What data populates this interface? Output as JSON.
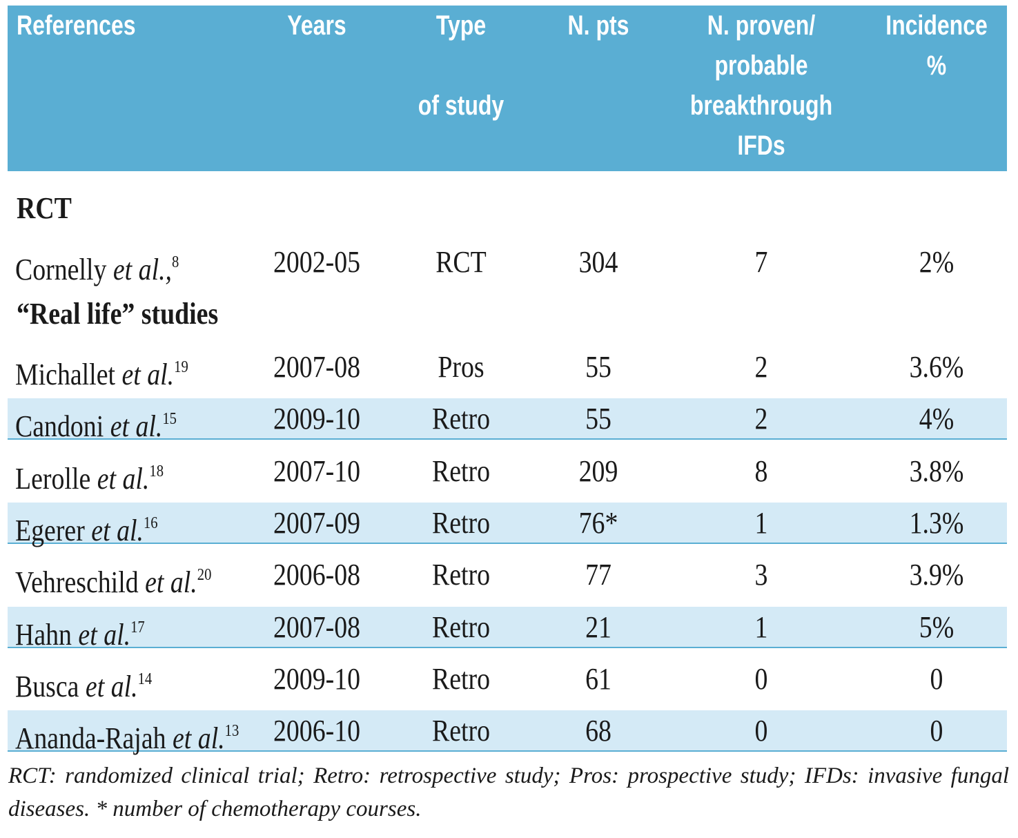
{
  "table": {
    "header": [
      [
        "References"
      ],
      [
        "Years"
      ],
      [
        "Type",
        "of study"
      ],
      [
        "N. pts"
      ],
      [
        "N. proven/",
        "probable",
        "breakthrough",
        "IFDs"
      ],
      [
        "Incidence",
        "%"
      ]
    ],
    "sections": [
      {
        "title": "RCT",
        "rows": [
          {
            "author": "Cornelly",
            "etal": "et al.,",
            "ref": "8",
            "years": "2002-05",
            "type": "RCT",
            "pts": "304",
            "ifds": "7",
            "incidence": "2%"
          }
        ]
      },
      {
        "title": "“Real life” studies",
        "rows": [
          {
            "author": "Michallet",
            "etal": "et al.",
            "ref": "19",
            "years": "2007-08",
            "type": "Pros",
            "pts": "55",
            "ifds": "2",
            "incidence": "3.6%"
          },
          {
            "author": "Candoni",
            "etal": "et al.",
            "ref": "15",
            "years": "2009-10",
            "type": "Retro",
            "pts": "55",
            "ifds": "2",
            "incidence": "4%"
          },
          {
            "author": "Lerolle",
            "etal": "et al.",
            "ref": "18",
            "years": "2007-10",
            "type": "Retro",
            "pts": "209",
            "ifds": "8",
            "incidence": "3.8%"
          },
          {
            "author": "Egerer",
            "etal": "et al.",
            "ref": "16",
            "years": "2007-09",
            "type": "Retro",
            "pts": "76*",
            "ifds": "1",
            "incidence": "1.3%"
          },
          {
            "author": "Vehreschild",
            "etal": "et al.",
            "ref": "20",
            "years": "2006-08",
            "type": "Retro",
            "pts": "77",
            "ifds": "3",
            "incidence": "3.9%"
          },
          {
            "author": "Hahn",
            "etal": "et al.",
            "ref": "17",
            "years": "2007-08",
            "type": "Retro",
            "pts": "21",
            "ifds": "1",
            "incidence": "5%"
          },
          {
            "author": "Busca",
            "etal": "et al.",
            "ref": "14",
            "years": "2009-10",
            "type": "Retro",
            "pts": "61",
            "ifds": "0",
            "incidence": "0"
          },
          {
            "author": "Ananda-Rajah",
            "etal": "et al.",
            "ref": "13",
            "years": "2006-10",
            "type": "Retro",
            "pts": "68",
            "ifds": "0",
            "incidence": "0"
          }
        ]
      }
    ],
    "footnote": "RCT: randomized clinical trial; Retro: retrospective study; Pros: prospective study; IFDs: invasive fungal diseases. * number of chemotherapy courses."
  }
}
